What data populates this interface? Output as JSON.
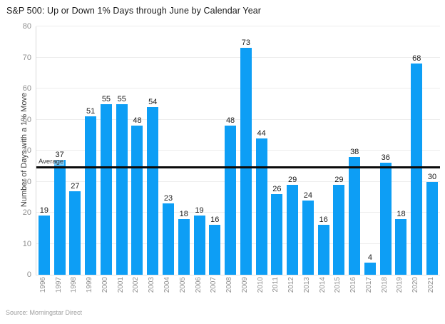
{
  "header": {
    "title": "S&P 500: Up or Down 1% Days through June by Calendar Year"
  },
  "footer": {
    "source": "Source: Morningstar Direct"
  },
  "chart_data": {
    "type": "bar",
    "title": "S&P 500: Up or Down 1% Days through June by Calendar Year",
    "categories": [
      "1996",
      "1997",
      "1998",
      "1999",
      "2000",
      "2001",
      "2002",
      "2003",
      "2004",
      "2005",
      "2006",
      "2007",
      "2008",
      "2009",
      "2010",
      "2011",
      "2012",
      "2013",
      "2014",
      "2015",
      "2016",
      "2017",
      "2018",
      "2019",
      "2020",
      "2021"
    ],
    "values": [
      19,
      37,
      27,
      51,
      55,
      55,
      48,
      54,
      23,
      18,
      19,
      16,
      48,
      73,
      44,
      26,
      29,
      24,
      16,
      29,
      38,
      4,
      36,
      18,
      68,
      30
    ],
    "xlabel": "",
    "ylabel": "Number of Days with a 1% Move",
    "ylim": [
      0,
      80
    ],
    "ytick_interval": 10,
    "grid": true,
    "legend": "none",
    "value_labels": true,
    "average_line": {
      "label": "Average",
      "value": 34.8
    },
    "colors": {
      "bar": "#0d9ef5",
      "average_line": "#0b0b0b",
      "gridline": "#ededed",
      "tick_text": "#8f8f8f",
      "value_text": "#1a1a1a"
    }
  }
}
